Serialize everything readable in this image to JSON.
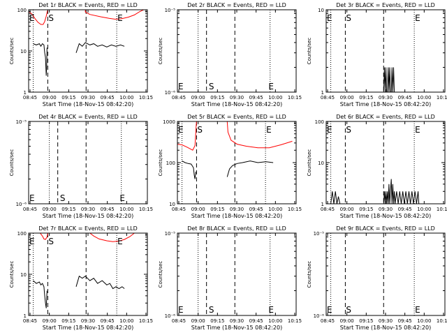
{
  "colors": {
    "events": "#000000",
    "lld": "#ff0000",
    "axis": "#000000",
    "background": "#ffffff"
  },
  "common": {
    "xticks": [
      "08:45",
      "09:00",
      "09:15",
      "09:30",
      "09:45",
      "10:00",
      "10:15"
    ],
    "xlabel": "Start Time (18-Nov-15 08:42:20)",
    "ylabel": "Counts/sec",
    "marker_s": "S",
    "marker_e": "E"
  },
  "chart_data": [
    {
      "type": "line",
      "title": "Det 1r BLACK = Events, RED = LLD",
      "yscale": "log",
      "ylim": [
        1,
        100
      ],
      "yticks": [
        "1",
        "10",
        "100"
      ],
      "x_domain_minutes": [
        -10,
        145
      ],
      "x": [
        -4,
        15,
        30,
        65,
        90,
        105,
        120,
        140
      ],
      "dashed_vlines": [
        15,
        65
      ],
      "dotted_vlines": [
        -4,
        105
      ],
      "s_marker": 15,
      "e_marker": 105,
      "s_y": "top",
      "e_y": "top",
      "extra_e": -9,
      "series": [
        {
          "color": "lld",
          "segments": [
            [
              [
                -10,
                90
              ],
              [
                -6,
                80
              ],
              [
                -2,
                62
              ],
              [
                2,
                50
              ],
              [
                6,
                44
              ],
              [
                9,
                44
              ],
              [
                11,
                52
              ],
              [
                13,
                70
              ],
              [
                14.5,
                95
              ]
            ],
            [
              [
                64,
                100
              ],
              [
                64,
                88
              ],
              [
                70,
                77
              ],
              [
                85,
                67
              ],
              [
                95,
                62
              ],
              [
                103,
                59
              ],
              [
                110,
                60
              ],
              [
                120,
                66
              ],
              [
                128,
                75
              ],
              [
                135,
                90
              ],
              [
                140,
                100
              ]
            ]
          ]
        },
        {
          "color": "events",
          "segments": [
            [
              [
                -4,
                15
              ],
              [
                0,
                14
              ],
              [
                4,
                15
              ],
              [
                6,
                13
              ],
              [
                8,
                15
              ],
              [
                10,
                14
              ],
              [
                11,
                9
              ],
              [
                12,
                7
              ],
              [
                13,
                2.5
              ],
              [
                13.5,
                4
              ],
              [
                14,
                12
              ]
            ],
            [
              [
                52,
                9
              ],
              [
                56,
                15
              ],
              [
                60,
                13
              ],
              [
                64,
                16
              ],
              [
                70,
                14
              ],
              [
                75,
                15
              ],
              [
                80,
                13
              ],
              [
                86,
                14
              ],
              [
                92,
                12.5
              ],
              [
                98,
                14
              ],
              [
                104,
                13
              ],
              [
                110,
                14
              ],
              [
                115,
                13
              ]
            ]
          ]
        }
      ]
    },
    {
      "type": "line",
      "title": "Det 2r BLACK = Events, RED = LLD",
      "yscale": "log",
      "ylim": [
        1e-06,
        1e-05
      ],
      "yticks": [
        "10⁻⁶",
        "10⁻⁵"
      ],
      "x_domain_minutes": [
        -10,
        145
      ],
      "dashed_vlines": [
        28,
        65
      ],
      "dotted_vlines": [
        17,
        111
      ],
      "s_marker": 30,
      "e_marker": 108,
      "s_y": "bottom",
      "e_y": "bottom",
      "extra_e": -8,
      "series": []
    },
    {
      "type": "line",
      "title": "Det 3r BLACK = Events, RED = LLD",
      "yscale": "log",
      "ylim": [
        1,
        10
      ],
      "yticks": [
        "1",
        "10"
      ],
      "x_domain_minutes": [
        -10,
        145
      ],
      "dashed_vlines": [
        15,
        65
      ],
      "dotted_vlines": [
        -4,
        105
      ],
      "s_marker": 15,
      "e_marker": 105,
      "s_y": "top",
      "e_y": "top",
      "extra_e": -9,
      "series": [
        {
          "color": "events",
          "segments": [
            [
              [
                65,
                1
              ],
              [
                66,
                2
              ],
              [
                67,
                1
              ],
              [
                68,
                2
              ],
              [
                69,
                1
              ],
              [
                70,
                1
              ],
              [
                71,
                2
              ],
              [
                72,
                1
              ],
              [
                73,
                2
              ],
              [
                74,
                1
              ],
              [
                75,
                1
              ],
              [
                76,
                2
              ],
              [
                77,
                1
              ],
              [
                78,
                2
              ],
              [
                79,
                1
              ]
            ]
          ]
        }
      ]
    },
    {
      "type": "line",
      "title": "Det 4r BLACK = Events, RED = LLD",
      "yscale": "log",
      "ylim": [
        1e-06,
        1e-05
      ],
      "yticks": [
        "10⁻⁶",
        "10⁻⁵"
      ],
      "x_domain_minutes": [
        -10,
        145
      ],
      "dashed_vlines": [
        28,
        65
      ],
      "dotted_vlines": [
        17,
        111
      ],
      "s_marker": 30,
      "e_marker": 108,
      "s_y": "bottom",
      "e_y": "bottom",
      "extra_e": -8,
      "series": []
    },
    {
      "type": "line",
      "title": "Det 5r BLACK = Events, RED = LLD",
      "yscale": "log",
      "ylim": [
        10,
        1000
      ],
      "yticks": [
        "10",
        "100",
        "1000"
      ],
      "x_domain_minutes": [
        -10,
        145
      ],
      "dashed_vlines": [
        15,
        65
      ],
      "dotted_vlines": [
        -4,
        105
      ],
      "s_marker": 15,
      "e_marker": 105,
      "s_y": "top",
      "e_y": "top",
      "extra_e": -9,
      "series": [
        {
          "color": "lld",
          "segments": [
            [
              [
                -10,
                280
              ],
              [
                -4,
                270
              ],
              [
                2,
                240
              ],
              [
                6,
                220
              ],
              [
                10,
                200
              ],
              [
                13,
                260
              ],
              [
                14.5,
                800
              ],
              [
                15,
                1000
              ]
            ],
            [
              [
                55,
                1000
              ],
              [
                56,
                550
              ],
              [
                60,
                350
              ],
              [
                68,
                280
              ],
              [
                80,
                250
              ],
              [
                95,
                230
              ],
              [
                110,
                230
              ],
              [
                125,
                270
              ],
              [
                140,
                330
              ]
            ]
          ]
        },
        {
          "color": "events",
          "segments": [
            [
              [
                -4,
                110
              ],
              [
                0,
                100
              ],
              [
                4,
                95
              ],
              [
                8,
                92
              ],
              [
                11,
                75
              ],
              [
                12,
                50
              ],
              [
                13,
                40
              ],
              [
                14,
                60
              ]
            ],
            [
              [
                55,
                45
              ],
              [
                58,
                70
              ],
              [
                62,
                85
              ],
              [
                68,
                95
              ],
              [
                75,
                100
              ],
              [
                85,
                110
              ],
              [
                95,
                100
              ],
              [
                105,
                105
              ],
              [
                115,
                100
              ]
            ]
          ]
        }
      ]
    },
    {
      "type": "line",
      "title": "Det 6r BLACK = Events, RED = LLD",
      "yscale": "log",
      "ylim": [
        1,
        100
      ],
      "yticks": [
        "1",
        "10",
        "100"
      ],
      "x_domain_minutes": [
        -10,
        145
      ],
      "dashed_vlines": [
        15,
        65
      ],
      "dotted_vlines": [
        -4,
        105
      ],
      "s_marker": 15,
      "e_marker": 105,
      "s_y": "top",
      "e_y": "top",
      "extra_e": -9,
      "series": [
        {
          "color": "lld",
          "segments": [
            [
              [
                11,
                100
              ],
              [
                14.5,
                100
              ]
            ]
          ]
        },
        {
          "color": "events",
          "segments": [
            [
              [
                -4,
                1
              ],
              [
                -2,
                2
              ],
              [
                0,
                1
              ],
              [
                2,
                2
              ],
              [
                4,
                1
              ],
              [
                6,
                1.5
              ],
              [
                8,
                1
              ]
            ],
            [
              [
                65,
                1
              ],
              [
                66,
                2
              ],
              [
                67,
                1
              ],
              [
                68,
                2
              ],
              [
                69,
                1
              ],
              [
                70,
                2
              ],
              [
                71,
                1
              ],
              [
                72,
                3
              ],
              [
                73,
                1
              ],
              [
                74,
                2
              ],
              [
                75,
                4
              ],
              [
                76,
                1
              ],
              [
                77,
                3
              ],
              [
                78,
                1
              ],
              [
                79,
                2
              ],
              [
                80,
                1
              ],
              [
                82,
                2
              ],
              [
                84,
                1
              ],
              [
                86,
                2
              ],
              [
                88,
                1
              ],
              [
                90,
                2
              ],
              [
                92,
                1
              ],
              [
                94,
                2
              ],
              [
                96,
                1
              ],
              [
                98,
                2
              ],
              [
                100,
                1
              ],
              [
                102,
                2
              ],
              [
                104,
                1
              ],
              [
                106,
                2
              ],
              [
                108,
                1
              ],
              [
                110,
                2
              ],
              [
                111,
                1
              ]
            ]
          ]
        }
      ]
    },
    {
      "type": "line",
      "title": "Det 7r BLACK = Events, RED = LLD",
      "yscale": "log",
      "ylim": [
        1,
        100
      ],
      "yticks": [
        "1",
        "10",
        "100"
      ],
      "x_domain_minutes": [
        -10,
        145
      ],
      "dashed_vlines": [
        15,
        65
      ],
      "dotted_vlines": [
        -4,
        105
      ],
      "s_marker": 15,
      "e_marker": 105,
      "s_y": "top",
      "e_y": "top",
      "extra_e": -9,
      "series": [
        {
          "color": "lld",
          "segments": [
            [
              [
                5,
                100
              ],
              [
                8,
                85
              ],
              [
                10,
                72
              ],
              [
                12,
                70
              ],
              [
                14,
                80
              ],
              [
                15,
                98
              ]
            ],
            [
              [
                70,
                100
              ],
              [
                75,
                85
              ],
              [
                82,
                72
              ],
              [
                92,
                65
              ],
              [
                100,
                62
              ],
              [
                108,
                64
              ],
              [
                115,
                70
              ],
              [
                122,
                82
              ],
              [
                128,
                100
              ]
            ]
          ]
        },
        {
          "color": "events",
          "segments": [
            [
              [
                -4,
                7
              ],
              [
                0,
                6
              ],
              [
                4,
                6.5
              ],
              [
                6,
                5.5
              ],
              [
                8,
                6
              ],
              [
                10,
                5
              ],
              [
                11,
                3
              ],
              [
                12,
                2
              ],
              [
                13,
                1.5
              ],
              [
                14,
                4
              ]
            ],
            [
              [
                52,
                5
              ],
              [
                56,
                9
              ],
              [
                60,
                8
              ],
              [
                64,
                9
              ],
              [
                70,
                7
              ],
              [
                75,
                8
              ],
              [
                80,
                6
              ],
              [
                86,
                7
              ],
              [
                92,
                5.5
              ],
              [
                96,
                6
              ],
              [
                100,
                4.5
              ],
              [
                104,
                5
              ],
              [
                108,
                4.5
              ],
              [
                112,
                5
              ],
              [
                115,
                4.5
              ]
            ]
          ]
        }
      ]
    },
    {
      "type": "line",
      "title": "Det 8r BLACK = Events, RED = LLD",
      "yscale": "log",
      "ylim": [
        1e-06,
        1e-05
      ],
      "yticks": [
        "10⁻⁶",
        "10⁻⁵"
      ],
      "x_domain_minutes": [
        -10,
        145
      ],
      "dashed_vlines": [
        28,
        65
      ],
      "dotted_vlines": [
        17,
        111
      ],
      "s_marker": 30,
      "e_marker": 108,
      "s_y": "bottom",
      "e_y": "bottom",
      "extra_e": -8,
      "series": []
    },
    {
      "type": "line",
      "title": "Det 9r BLACK = Events, RED = LLD",
      "yscale": "log",
      "ylim": [
        1e-06,
        1e-05
      ],
      "yticks": [
        "10⁻⁶",
        "10⁻⁵"
      ],
      "x_domain_minutes": [
        -10,
        145
      ],
      "dashed_vlines": [
        15,
        65
      ],
      "dotted_vlines": [
        -4,
        105
      ],
      "s_marker": 15,
      "e_marker": 105,
      "s_y": "bottom",
      "e_y": "bottom",
      "extra_e": -9,
      "series": []
    }
  ]
}
